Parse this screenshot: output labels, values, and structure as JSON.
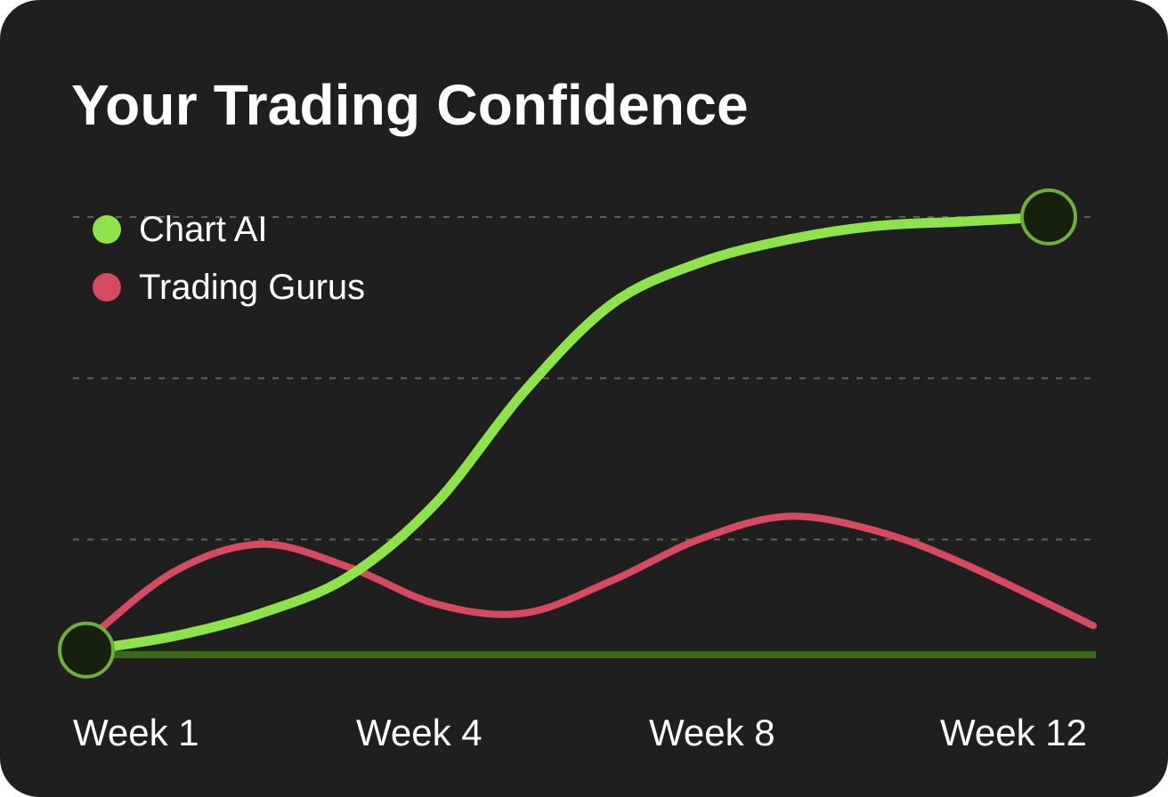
{
  "card": {
    "title": "Your Trading Confidence"
  },
  "colors": {
    "background": "#1f1f1f",
    "chart_ai": "#8ee34a",
    "trading_gurus": "#d64a60",
    "baseline": "#3a6a1a",
    "marker_fill": "#16200e",
    "marker_stroke": "#6fae3a",
    "grid": "#5e6453"
  },
  "chart_data": {
    "type": "line",
    "title": "Your Trading Confidence",
    "xlabel": "",
    "ylabel": "",
    "x": [
      1,
      2,
      3,
      4,
      5,
      6,
      7,
      8,
      9,
      10,
      11,
      12
    ],
    "xticks": [
      {
        "value": 1,
        "label": "Week 1"
      },
      {
        "value": 4,
        "label": "Week 4"
      },
      {
        "value": 8,
        "label": "Week 8"
      },
      {
        "value": 12,
        "label": "Week 12"
      }
    ],
    "ylim": [
      0,
      100
    ],
    "yticks_shown": false,
    "grid": "horizontal-dashed",
    "legend_position": "top-left",
    "series": [
      {
        "name": "Chart AI",
        "color": "#8ee34a",
        "values": [
          1,
          4,
          9,
          17,
          33,
          57,
          76,
          85,
          90,
          93,
          94,
          95
        ],
        "end_markers": true
      },
      {
        "name": "Trading Gurus",
        "color": "#d64a60",
        "values": [
          3,
          18,
          24,
          19,
          11,
          9,
          16,
          25,
          30,
          27,
          20,
          9
        ],
        "end_markers": false
      }
    ]
  }
}
